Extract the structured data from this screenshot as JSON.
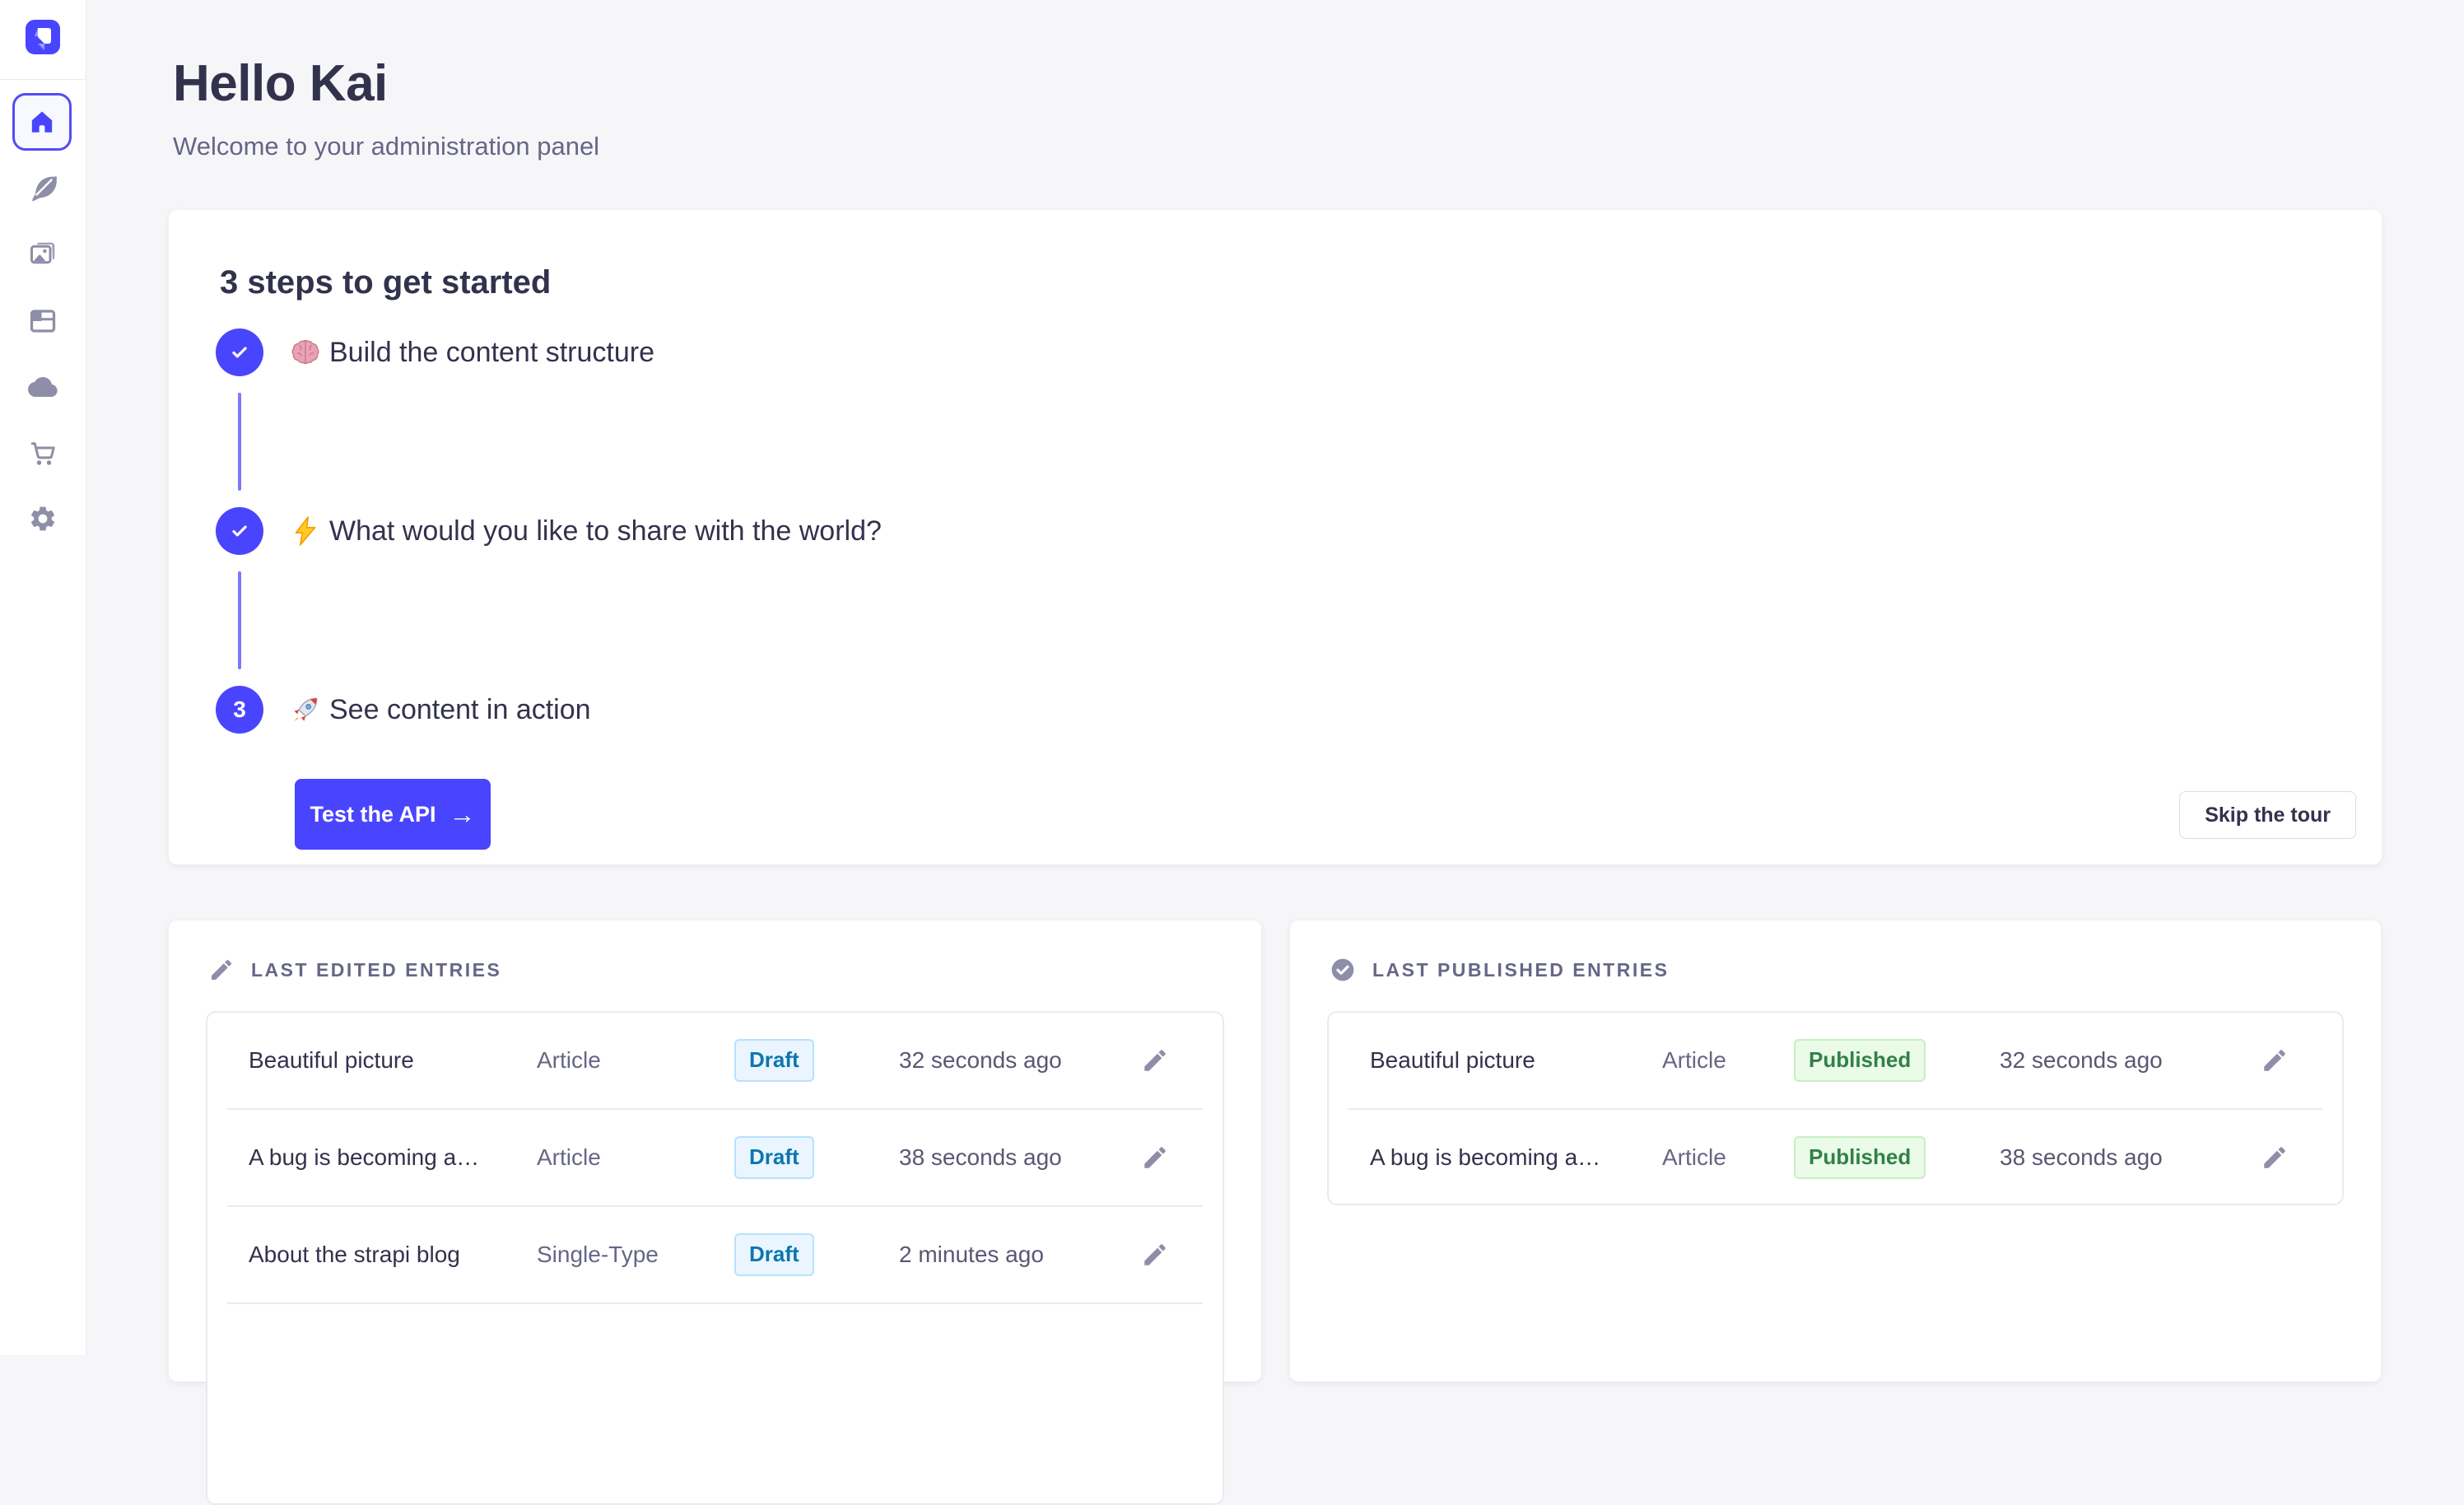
{
  "colors": {
    "primary": "#4945FF",
    "connector": "#7B79FF",
    "page_bg": "#F6F6F9",
    "border": "#EAEAEF",
    "text_dark": "#32324D",
    "text_gray": "#666687",
    "rail_icon": "#8E8EA9",
    "draft": {
      "bg": "#EAF5FF",
      "border": "#B8E1FF",
      "text": "#0C75AF"
    },
    "published": {
      "bg": "#EAFBE7",
      "border": "#C6F0C2",
      "text": "#328048"
    }
  },
  "sidebar": {
    "logo_icon": "strapi-logo",
    "items": [
      {
        "icon": "home-icon",
        "selected": true
      },
      {
        "icon": "feather-icon",
        "selected": false
      },
      {
        "icon": "media-library-icon",
        "selected": false
      },
      {
        "icon": "layout-icon",
        "selected": false
      },
      {
        "icon": "cloud-icon",
        "selected": false
      },
      {
        "icon": "cart-icon",
        "selected": false
      },
      {
        "icon": "gear-icon",
        "selected": false
      }
    ]
  },
  "header": {
    "title": "Hello Kai",
    "subtitle": "Welcome to your administration panel"
  },
  "onboarding": {
    "title": "3 steps to get started",
    "steps": [
      {
        "state": "done",
        "emoji": "🧠",
        "label": "Build the content structure"
      },
      {
        "state": "done",
        "emoji": "⚡",
        "label": "What would you like to share with the world?"
      },
      {
        "state": "3",
        "emoji": "🚀",
        "label": "See content in action"
      }
    ],
    "step3_number": "3",
    "cta_label": "Test the API",
    "cta_arrow": "→",
    "skip_label": "Skip the tour"
  },
  "widgets": {
    "last_edited": {
      "caption": "LAST EDITED ENTRIES",
      "icon": "pencil-icon",
      "rows": [
        {
          "title": "Beautiful picture",
          "type": "Article",
          "status": "Draft",
          "time": "32 seconds ago"
        },
        {
          "title": "A bug is becoming a…",
          "type": "Article",
          "status": "Draft",
          "time": "38 seconds ago"
        },
        {
          "title": "About the strapi blog",
          "type": "Single-Type",
          "status": "Draft",
          "time": "2 minutes ago"
        }
      ]
    },
    "last_published": {
      "caption": "LAST PUBLISHED ENTRIES",
      "icon": "check-circle-icon",
      "rows": [
        {
          "title": "Beautiful picture",
          "type": "Article",
          "status": "Published",
          "time": "32 seconds ago"
        },
        {
          "title": "A bug is becoming a…",
          "type": "Article",
          "status": "Published",
          "time": "38 seconds ago"
        }
      ]
    }
  }
}
